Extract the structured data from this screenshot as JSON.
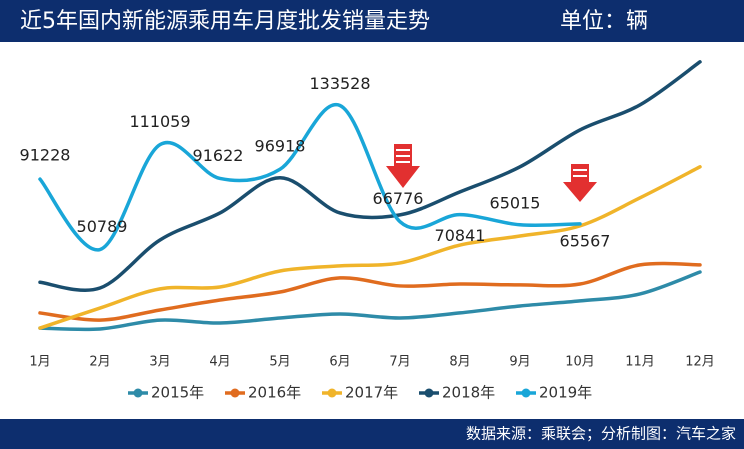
{
  "chart_data": {
    "type": "line",
    "title": "近5年国内新能源乘用车月度批发销量走势",
    "subtitle": "单位：辆",
    "source": "数据来源：乘联会；分析制图：汽车之家",
    "categories": [
      "1月",
      "2月",
      "3月",
      "4月",
      "5月",
      "6月",
      "7月",
      "8月",
      "9月",
      "10月",
      "11月",
      "12月"
    ],
    "ylim": [
      0,
      170000
    ],
    "legend": "bottom",
    "grid": false,
    "series": [
      {
        "name": "2015年",
        "color": "#2e8ba8",
        "values": [
          5700,
          5200,
          10300,
          8600,
          11500,
          13800,
          11500,
          14400,
          18400,
          21300,
          25300,
          37900
        ]
      },
      {
        "name": "2016年",
        "color": "#e06c1f",
        "values": [
          14400,
          10300,
          16100,
          21800,
          26400,
          34500,
          29900,
          31000,
          30500,
          31000,
          42000,
          42000
        ]
      },
      {
        "name": "2017年",
        "color": "#f0b42a",
        "values": [
          5700,
          17200,
          28200,
          29300,
          38500,
          41400,
          43100,
          53400,
          58600,
          64400,
          80500,
          98300
        ]
      },
      {
        "name": "2018年",
        "color": "#1a4e6e",
        "values": [
          32000,
          28700,
          56300,
          71800,
          92000,
          71800,
          70700,
          83900,
          98300,
          119500,
          133900,
          158600
        ]
      },
      {
        "name": "2019年",
        "color": "#19a6d8",
        "values": [
          91228,
          50789,
          111059,
          91622,
          96918,
          133528,
          66776,
          70841,
          65015,
          65567,
          null,
          null
        ],
        "data_labels": true
      }
    ]
  }
}
